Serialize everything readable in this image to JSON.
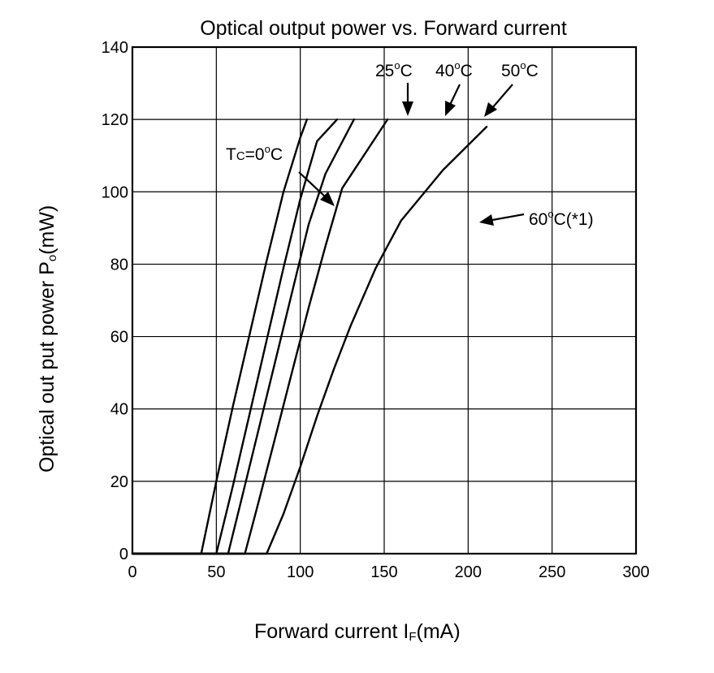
{
  "chart_data": {
    "type": "line",
    "title": "Optical output power vs. Forward current",
    "xlabel": {
      "main": "Forward current   I",
      "sub": "F",
      "unit": "(mA)"
    },
    "ylabel": {
      "main": "Optical out put power   P",
      "sub": "o",
      "unit": "(mW)"
    },
    "xlim": [
      0,
      300
    ],
    "ylim": [
      0,
      140
    ],
    "xticks": [
      0,
      50,
      100,
      150,
      200,
      250,
      300
    ],
    "yticks": [
      0,
      20,
      40,
      60,
      80,
      100,
      120,
      140
    ],
    "grid": true,
    "series": [
      {
        "points": [
          [
            0,
            0
          ],
          [
            41,
            0
          ],
          [
            50,
            20
          ],
          [
            60,
            41
          ],
          [
            70,
            61
          ],
          [
            80,
            81
          ],
          [
            90,
            100
          ],
          [
            100,
            115
          ],
          [
            104,
            120
          ]
        ]
      },
      {
        "points": [
          [
            0,
            0
          ],
          [
            50,
            0
          ],
          [
            60,
            19
          ],
          [
            70,
            39
          ],
          [
            80,
            59
          ],
          [
            90,
            79
          ],
          [
            100,
            98
          ],
          [
            110,
            114
          ],
          [
            122,
            120
          ]
        ]
      },
      {
        "points": [
          [
            0,
            0
          ],
          [
            57,
            0
          ],
          [
            65,
            15
          ],
          [
            75,
            34
          ],
          [
            85,
            53
          ],
          [
            95,
            72
          ],
          [
            105,
            91
          ],
          [
            115,
            105
          ],
          [
            132,
            120
          ]
        ]
      },
      {
        "points": [
          [
            0,
            0
          ],
          [
            67,
            0
          ],
          [
            75,
            14
          ],
          [
            85,
            32
          ],
          [
            95,
            50
          ],
          [
            105,
            68
          ],
          [
            115,
            85
          ],
          [
            125,
            101
          ],
          [
            152,
            120
          ]
        ]
      },
      {
        "points": [
          [
            0,
            0
          ],
          [
            80,
            0
          ],
          [
            90,
            11
          ],
          [
            100,
            24
          ],
          [
            110,
            38
          ],
          [
            120,
            51
          ],
          [
            130,
            63
          ],
          [
            145,
            79
          ],
          [
            160,
            92
          ],
          [
            185,
            106
          ],
          [
            211,
            118
          ]
        ]
      }
    ],
    "annotations": [
      {
        "main": "T",
        "small": "C",
        "rest": "=0",
        "sup": "o",
        "unit": "C"
      },
      {
        "main": "25",
        "sup": "o",
        "unit": "C"
      },
      {
        "main": "40",
        "sup": "o",
        "unit": "C"
      },
      {
        "main": "50",
        "sup": "o",
        "unit": "C"
      },
      {
        "main": "60",
        "sup": "o",
        "unit": "C(*1)"
      }
    ]
  }
}
